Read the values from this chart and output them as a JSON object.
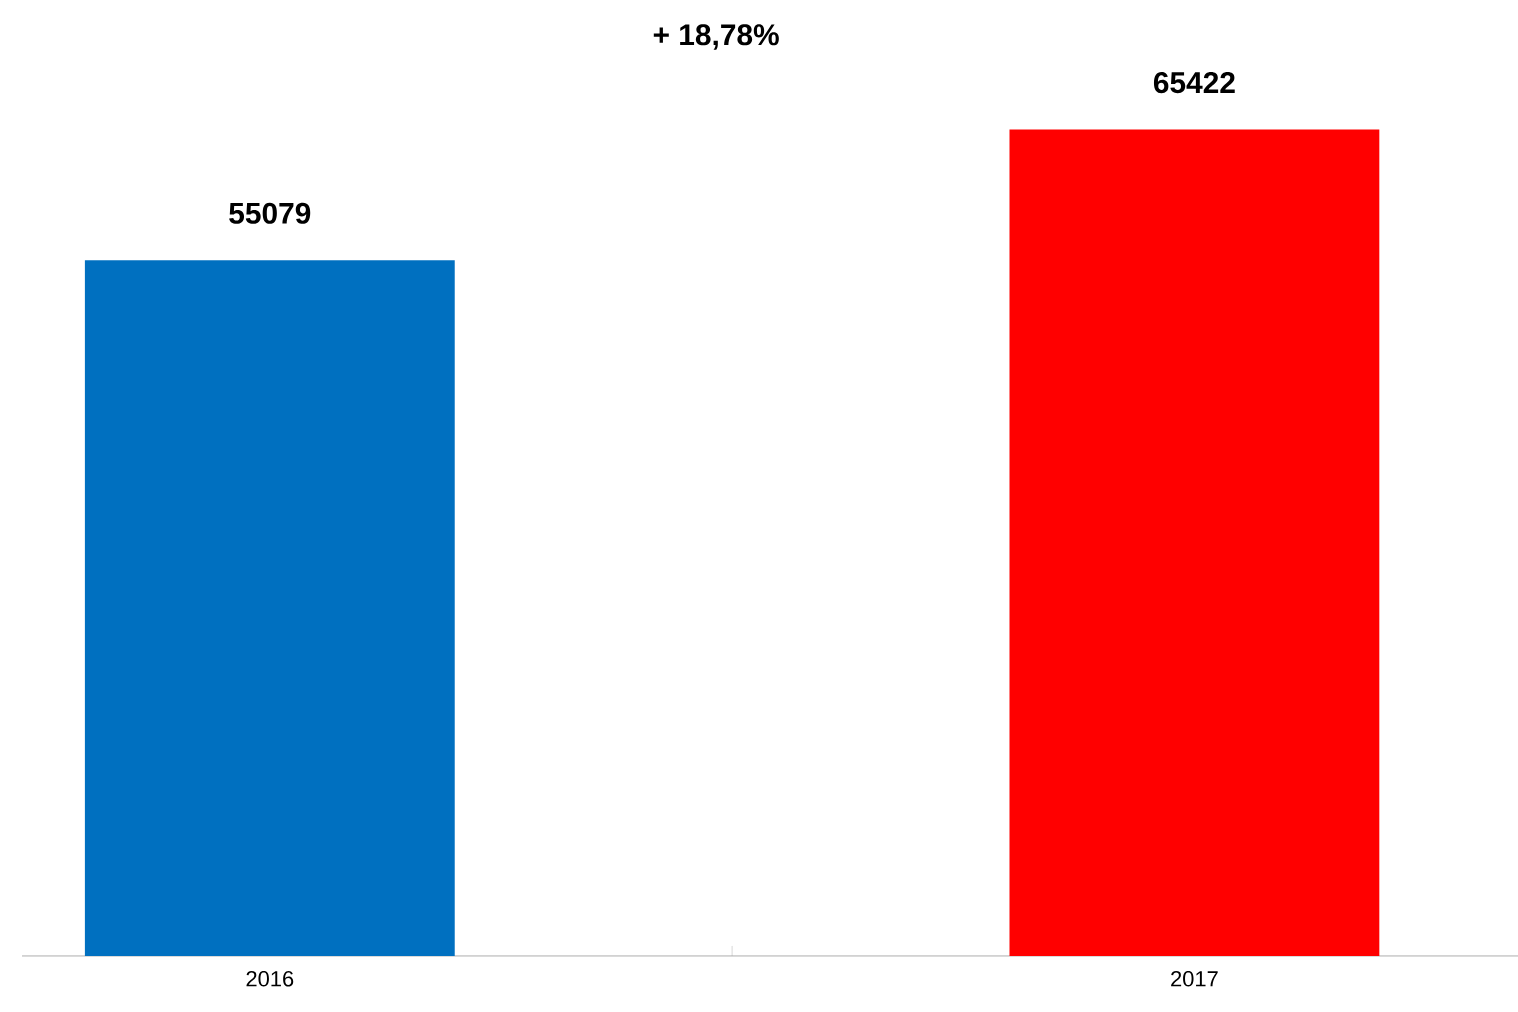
{
  "chart_data": {
    "type": "bar",
    "categories": [
      "2016",
      "2017"
    ],
    "values": [
      55079,
      65422
    ],
    "colors": [
      "#0070c0",
      "#ff0000"
    ],
    "data_labels": true,
    "annotations": [
      "+ 18,78%"
    ]
  }
}
